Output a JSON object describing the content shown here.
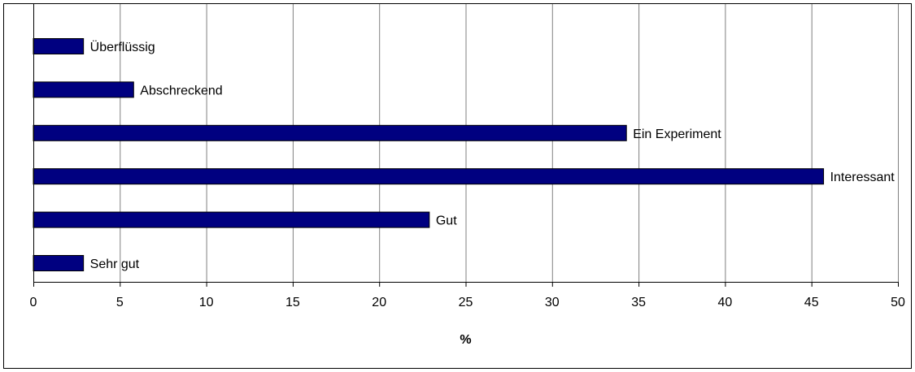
{
  "chart_data": {
    "type": "bar",
    "orientation": "horizontal",
    "categories": [
      "Überflüssig",
      "Abschreckend",
      "Ein Experiment",
      "Interessant",
      "Gut",
      "Sehr gut"
    ],
    "values": [
      2.9,
      5.8,
      34.3,
      45.7,
      22.9,
      2.9
    ],
    "title": "",
    "xlabel": "%",
    "ylabel": "",
    "xlim": [
      0,
      50
    ],
    "xticks": [
      0,
      5,
      10,
      15,
      20,
      25,
      30,
      35,
      40,
      45,
      50
    ],
    "grid": "vertical",
    "legend": "none",
    "colors": {
      "bar_fill": "#000080",
      "bar_stroke": "#000000",
      "grid": "#808080",
      "axis": "#000000"
    }
  }
}
